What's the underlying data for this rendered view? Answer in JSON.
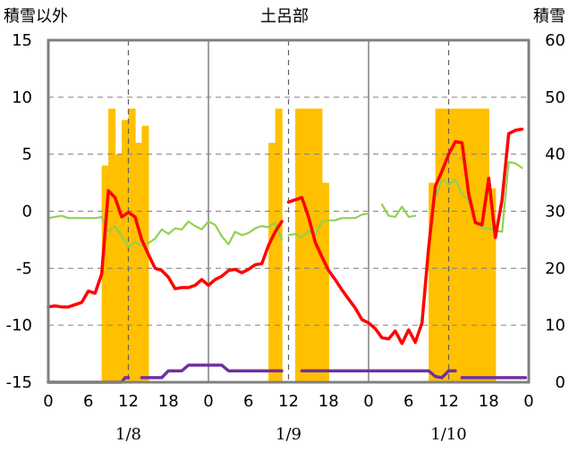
{
  "chart_data": {
    "type": "bar+line",
    "title": "土呂部",
    "ylabel_left": "積雪以外",
    "ylabel_right": "積雪",
    "ylim_left": [
      -15,
      15
    ],
    "ylim_right": [
      0,
      60
    ],
    "yticks_left": [
      "15",
      "10",
      "5",
      "0",
      "-5",
      "-10",
      "-15"
    ],
    "yticks_right": [
      "60",
      "50",
      "40",
      "30",
      "20",
      "10",
      "0"
    ],
    "xticks": [
      "0",
      "6",
      "12",
      "18",
      "0",
      "6",
      "12",
      "18",
      "0",
      "6",
      "12",
      "18",
      "0"
    ],
    "days": [
      "1/8",
      "1/9",
      "1/10"
    ],
    "xlim_hours": [
      0,
      72
    ],
    "grid": "dashed vertical at 12h, solid vertical at midnight",
    "colors": {
      "snow_bars": "#FFC000",
      "temperature": "#FF0000",
      "green_series": "#92D050",
      "purple_series": "#7030A0",
      "frame": "#808080"
    },
    "series": [
      {
        "kind": "bar",
        "axis": "right",
        "color": "#FFC000",
        "points": [
          [
            8,
            38
          ],
          [
            9,
            48
          ],
          [
            10,
            40
          ],
          [
            11,
            46
          ],
          [
            12,
            48
          ],
          [
            13,
            42
          ],
          [
            14,
            45
          ],
          [
            33,
            42
          ],
          [
            34,
            48
          ],
          [
            37,
            48
          ],
          [
            38,
            48
          ],
          [
            39,
            48
          ],
          [
            40,
            48
          ],
          [
            41,
            35
          ],
          [
            57,
            35
          ],
          [
            58,
            48
          ],
          [
            59,
            48
          ],
          [
            60,
            48
          ],
          [
            61,
            48
          ],
          [
            62,
            48
          ],
          [
            63,
            48
          ],
          [
            64,
            48
          ],
          [
            65,
            48
          ],
          [
            66,
            34
          ]
        ]
      },
      {
        "kind": "line",
        "axis": "left",
        "color": "#FF0000",
        "segments": [
          [
            [
              0,
              -8.4
            ],
            [
              1,
              -8.3
            ],
            [
              2,
              -8.4
            ],
            [
              3,
              -8.4
            ],
            [
              4,
              -8.2
            ],
            [
              5,
              -8.0
            ],
            [
              6,
              -7.0
            ],
            [
              7,
              -7.2
            ],
            [
              8,
              -5.5
            ],
            [
              9,
              1.8
            ],
            [
              10,
              1.2
            ],
            [
              11,
              -0.5
            ],
            [
              12,
              -0.1
            ],
            [
              13,
              -0.5
            ],
            [
              14,
              -2.5
            ],
            [
              15,
              -3.8
            ],
            [
              16,
              -5.0
            ],
            [
              17,
              -5.2
            ],
            [
              18,
              -5.8
            ],
            [
              19,
              -6.8
            ],
            [
              20,
              -6.7
            ],
            [
              21,
              -6.7
            ],
            [
              22,
              -6.5
            ],
            [
              23,
              -6.0
            ],
            [
              24,
              -6.5
            ],
            [
              25,
              -6.0
            ],
            [
              26,
              -5.7
            ],
            [
              27,
              -5.2
            ],
            [
              28,
              -5.1
            ],
            [
              29,
              -5.4
            ],
            [
              30,
              -5.1
            ],
            [
              31,
              -4.7
            ],
            [
              32,
              -4.6
            ],
            [
              33,
              -3.0
            ],
            [
              34,
              -1.8
            ],
            [
              35,
              -0.9
            ]
          ],
          [
            [
              36,
              0.8
            ],
            [
              37,
              1.0
            ],
            [
              38,
              1.2
            ],
            [
              39,
              -0.5
            ],
            [
              40,
              -2.7
            ],
            [
              41,
              -4.0
            ],
            [
              42,
              -5.2
            ],
            [
              43,
              -6.0
            ],
            [
              44,
              -6.9
            ],
            [
              45,
              -7.7
            ],
            [
              46,
              -8.5
            ],
            [
              47,
              -9.5
            ],
            [
              48,
              -9.8
            ],
            [
              49,
              -10.3
            ],
            [
              50,
              -11.1
            ],
            [
              51,
              -11.2
            ],
            [
              52,
              -10.5
            ],
            [
              53,
              -11.6
            ],
            [
              54,
              -10.4
            ],
            [
              55,
              -11.5
            ],
            [
              56,
              -9.8
            ],
            [
              57,
              -3.2
            ],
            [
              58,
              2.2
            ],
            [
              59,
              3.5
            ],
            [
              60,
              5.0
            ],
            [
              61,
              6.1
            ],
            [
              62,
              6.0
            ],
            [
              63,
              1.5
            ],
            [
              64,
              -1.0
            ],
            [
              65,
              -1.2
            ],
            [
              66,
              2.9
            ],
            [
              67,
              -2.3
            ],
            [
              68,
              1.0
            ],
            [
              69,
              6.8
            ],
            [
              70,
              7.1
            ],
            [
              71,
              7.2
            ]
          ]
        ]
      },
      {
        "kind": "line",
        "axis": "left",
        "color": "#92D050",
        "segments": [
          [
            [
              0,
              -0.6
            ],
            [
              1,
              -0.5
            ],
            [
              2,
              -0.4
            ],
            [
              3,
              -0.6
            ],
            [
              4,
              -0.6
            ],
            [
              5,
              -0.6
            ],
            [
              6,
              -0.6
            ],
            [
              7,
              -0.6
            ],
            [
              8,
              -0.5
            ],
            [
              9,
              -1.8
            ],
            [
              10,
              -1.3
            ],
            [
              11,
              -2.2
            ],
            [
              12,
              -3.1
            ],
            [
              13,
              -2.7
            ],
            [
              14,
              -3.0
            ],
            [
              15,
              -2.8
            ],
            [
              16,
              -2.4
            ],
            [
              17,
              -1.6
            ],
            [
              18,
              -2.0
            ],
            [
              19,
              -1.5
            ],
            [
              20,
              -1.6
            ],
            [
              21,
              -0.9
            ],
            [
              22,
              -1.3
            ],
            [
              23,
              -1.6
            ],
            [
              24,
              -0.9
            ],
            [
              25,
              -1.2
            ],
            [
              26,
              -2.2
            ],
            [
              27,
              -2.9
            ],
            [
              28,
              -1.8
            ],
            [
              29,
              -2.1
            ],
            [
              30,
              -1.9
            ],
            [
              31,
              -1.5
            ],
            [
              32,
              -1.3
            ],
            [
              33,
              -1.4
            ],
            [
              34,
              -1.0
            ],
            [
              35,
              -2.5
            ]
          ],
          [
            [
              36,
              -2.1
            ],
            [
              37,
              -2.0
            ],
            [
              38,
              -2.3
            ],
            [
              39,
              -1.7
            ],
            [
              40,
              -2.1
            ],
            [
              41,
              -0.9
            ],
            [
              42,
              -0.8
            ],
            [
              43,
              -0.8
            ],
            [
              44,
              -0.6
            ],
            [
              45,
              -0.6
            ],
            [
              46,
              -0.6
            ],
            [
              47,
              -0.3
            ],
            [
              48,
              -0.2
            ]
          ],
          [
            [
              50,
              0.6
            ],
            [
              51,
              -0.4
            ],
            [
              52,
              -0.5
            ],
            [
              53,
              0.4
            ],
            [
              54,
              -0.5
            ],
            [
              55,
              -0.4
            ]
          ],
          [
            [
              58,
              1.2
            ],
            [
              59,
              2.8
            ],
            [
              60,
              2.3
            ],
            [
              61,
              2.8
            ],
            [
              62,
              1.5
            ],
            [
              63,
              1.0
            ],
            [
              64,
              -0.8
            ],
            [
              65,
              -1.5
            ],
            [
              66,
              -1.5
            ],
            [
              67,
              -1.7
            ],
            [
              68,
              -1.8
            ],
            [
              69,
              4.3
            ],
            [
              70,
              4.2
            ],
            [
              71,
              3.8
            ]
          ]
        ]
      },
      {
        "kind": "line",
        "axis": "left",
        "color": "#7030A0",
        "segments": [
          [
            [
              0,
              -15
            ],
            [
              11,
              -15
            ],
            [
              11.5,
              -14.6
            ],
            [
              12,
              -14.6
            ]
          ],
          [
            [
              14,
              -14.6
            ],
            [
              17,
              -14.6
            ],
            [
              18,
              -14.0
            ],
            [
              20,
              -14.0
            ],
            [
              21,
              -13.5
            ],
            [
              26,
              -13.5
            ],
            [
              27,
              -14.0
            ],
            [
              35,
              -14.0
            ]
          ],
          [
            [
              38,
              -14.0
            ],
            [
              57,
              -14.0
            ],
            [
              58,
              -14.5
            ],
            [
              59,
              -14.6
            ],
            [
              60,
              -14.0
            ],
            [
              61,
              -14.0
            ]
          ],
          [
            [
              62,
              -14.6
            ],
            [
              71.5,
              -14.6
            ]
          ]
        ]
      }
    ]
  }
}
